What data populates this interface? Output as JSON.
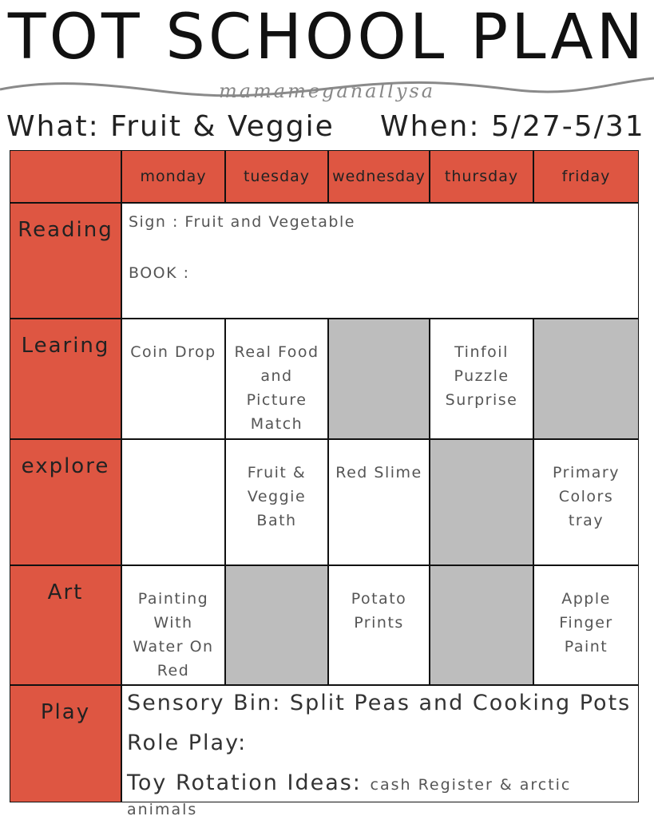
{
  "header": {
    "title": "TOT SCHOOL PLAN",
    "signature": "mamameganallysa",
    "what": "What: Fruit & Veggie",
    "when": "When: 5/27-5/31"
  },
  "table": {
    "days": [
      "monday",
      "tuesday",
      "wednesday",
      "thursday",
      "friday"
    ],
    "reading": {
      "label": "Reading",
      "lines": [
        "Sign : Fruit and Vegetable",
        "BOOK :"
      ]
    },
    "rows": [
      {
        "label": "Learing",
        "cells": [
          "Coin Drop",
          "Real Food and Picture Match",
          {
            "shaded": true
          },
          "Tinfoil Puzzle Surprise",
          {
            "shaded": true
          }
        ]
      },
      {
        "label": "explore",
        "cells": [
          null,
          "Fruit & Veggie Bath",
          "Red Slime",
          {
            "shaded": true
          },
          "Primary Colors tray"
        ]
      },
      {
        "label": "Art",
        "cells": [
          "Painting With Water On Red",
          {
            "shaded": true
          },
          "Potato Prints",
          {
            "shaded": true
          },
          "Apple Finger Paint"
        ]
      }
    ],
    "play": {
      "label": "Play",
      "sensory": "Sensory Bin: Split Peas and Cooking Pots",
      "role": "Role Play:",
      "toy_label": "Toy Rotation Ideas:",
      "toy_value": "cash Register & arctic animals"
    }
  }
}
